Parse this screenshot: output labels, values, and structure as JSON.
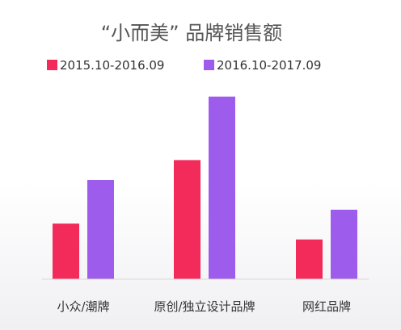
{
  "chart_data": {
    "type": "bar",
    "title": "“小而美” 品牌销售额",
    "categories": [
      "小众/潮牌",
      "原创/独立设计品牌",
      "网红品牌"
    ],
    "series": [
      {
        "name": "2015.10-2016.09",
        "color": "#f22b5b",
        "values": [
          14,
          30,
          10
        ]
      },
      {
        "name": "2016.10-2017.09",
        "color": "#9e5cec",
        "values": [
          25,
          46,
          17.5
        ]
      }
    ],
    "ylim": [
      0,
      50
    ],
    "xlabel": "",
    "ylabel": "",
    "grid": false,
    "legend": "top-center",
    "colors": {
      "title": "#555555",
      "text": "#333333",
      "axis": "#d9d9d9"
    }
  }
}
